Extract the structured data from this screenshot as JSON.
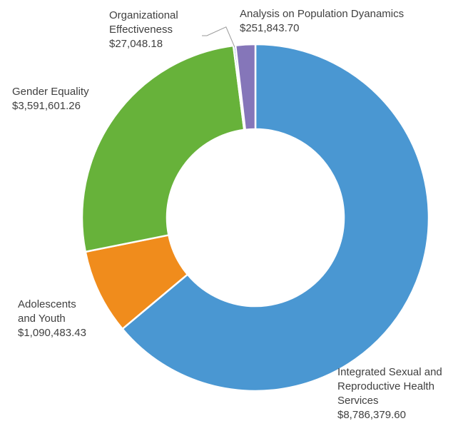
{
  "chart_data": {
    "type": "pie",
    "variant": "donut",
    "title": "",
    "legend": "none",
    "slices": [
      {
        "label_lines": [
          "Integrated Sexual and",
          "Reproductive Health",
          "Services"
        ],
        "value": 8786379.6,
        "value_label": "$8,786,379.60",
        "color": "#4a97d2"
      },
      {
        "label_lines": [
          "Adolescents",
          "and Youth"
        ],
        "value": 1090483.43,
        "value_label": "$1,090,483.43",
        "color": "#f08c1c"
      },
      {
        "label_lines": [
          "Gender Equality"
        ],
        "value": 3591601.26,
        "value_label": "$3,591,601.26",
        "color": "#67b23a"
      },
      {
        "label_lines": [
          "Organizational",
          "Effectiveness"
        ],
        "value": 27048.18,
        "value_label": "$27,048.18",
        "color": "#2e6fbf"
      },
      {
        "label_lines": [
          "Analysis on Population Dyanamics"
        ],
        "value": 251843.7,
        "value_label": "$251,843.70",
        "color": "#8576b9"
      }
    ]
  }
}
